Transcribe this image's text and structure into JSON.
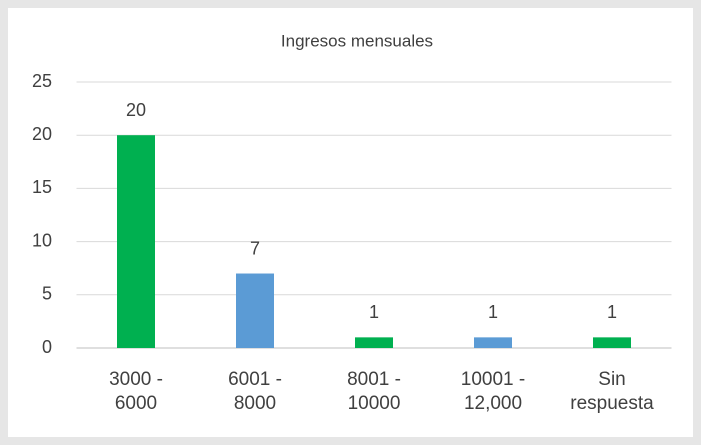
{
  "chart_data": {
    "type": "bar",
    "title": "Ingresos mensuales",
    "categories": [
      "3000 - 6000",
      "6001 - 8000",
      "8001 - 10000",
      "10001 - 12,000",
      "Sin respuesta"
    ],
    "values": [
      20,
      7,
      1,
      1,
      1
    ],
    "colors": [
      "#00b050",
      "#5b9bd5",
      "#00b050",
      "#5b9bd5",
      "#00b050"
    ],
    "ylim": [
      0,
      25
    ],
    "yticks": [
      0,
      5,
      10,
      15,
      20,
      25
    ],
    "grid": true
  }
}
